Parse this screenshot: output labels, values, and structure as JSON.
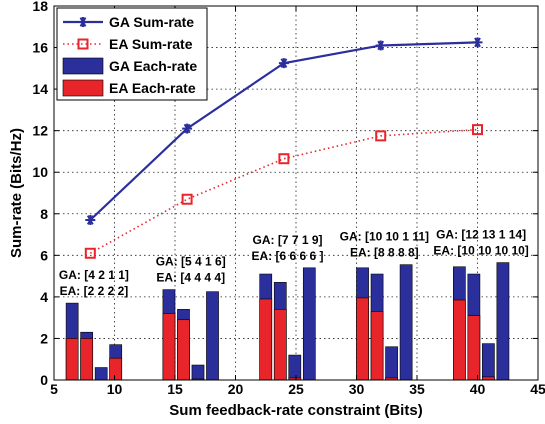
{
  "chart_data": {
    "type": "bar",
    "xlabel": "Sum feedback-rate constraint (Bits)",
    "ylabel": "Sum-rate (Bits/Hz)",
    "xlim": [
      5,
      45
    ],
    "ylim": [
      0,
      18
    ],
    "xticks": [
      "5",
      "10",
      "15",
      "20",
      "25",
      "30",
      "35",
      "40",
      "45"
    ],
    "yticks": [
      "0",
      "2",
      "4",
      "6",
      "8",
      "10",
      "12",
      "14",
      "16",
      "18"
    ],
    "grid": true,
    "legend": {
      "placement": "top-left",
      "entries": [
        "GA Sum-rate",
        "EA Sum-rate",
        "GA Each-rate",
        "EA Each-rate"
      ]
    },
    "colors": {
      "ga": "#2b2f9c",
      "ea": "#e8252b"
    },
    "lines": [
      {
        "name": "GA Sum-rate",
        "style": "solid",
        "marker": "asterisk",
        "x": [
          8,
          16,
          24,
          32,
          40
        ],
        "y": [
          7.7,
          12.1,
          15.25,
          16.1,
          16.25
        ]
      },
      {
        "name": "EA Sum-rate",
        "style": "dotted",
        "marker": "square",
        "x": [
          8,
          16,
          24,
          32,
          40
        ],
        "y": [
          6.1,
          8.7,
          10.65,
          11.75,
          12.05
        ]
      }
    ],
    "bar_groups": [
      {
        "annotation": [
          "GA: [4 2 1 1]",
          "EA: [2 2 2 2]"
        ],
        "x": [
          6.5,
          7.7,
          8.9,
          10.1
        ],
        "ga": [
          3.7,
          2.3,
          0.6,
          1.7
        ],
        "ea": [
          2.0,
          2.0,
          0.0,
          1.05
        ]
      },
      {
        "annotation": [
          "GA: [5 4 1 6]",
          "EA: [4 4 4 4]"
        ],
        "x": [
          14.5,
          15.7,
          16.9,
          18.1
        ],
        "ga": [
          4.35,
          3.4,
          0.72,
          4.25
        ],
        "ea": [
          3.2,
          2.9,
          0.05,
          0.0
        ]
      },
      {
        "annotation": [
          "GA: [7 7 1 9]",
          "EA: [6 6 6 6 ]"
        ],
        "x": [
          22.5,
          23.7,
          24.9,
          26.1
        ],
        "ga": [
          5.1,
          4.7,
          1.2,
          5.4
        ],
        "ea": [
          3.9,
          3.4,
          0.1,
          0.0
        ]
      },
      {
        "annotation": [
          "GA: [10 10 1 11]",
          "EA: [8 8 8 8]"
        ],
        "x": [
          30.5,
          31.7,
          32.9,
          34.1
        ],
        "ga": [
          5.4,
          5.1,
          1.6,
          5.55
        ],
        "ea": [
          3.95,
          3.3,
          0.1,
          0.0
        ]
      },
      {
        "annotation": [
          "GA: [12 13 1 14]",
          "EA: [10 10 10 10]"
        ],
        "x": [
          38.5,
          39.7,
          40.9,
          42.1
        ],
        "ga": [
          5.45,
          5.1,
          1.75,
          5.65
        ],
        "ea": [
          3.85,
          3.1,
          0.15,
          0.0
        ]
      }
    ]
  }
}
